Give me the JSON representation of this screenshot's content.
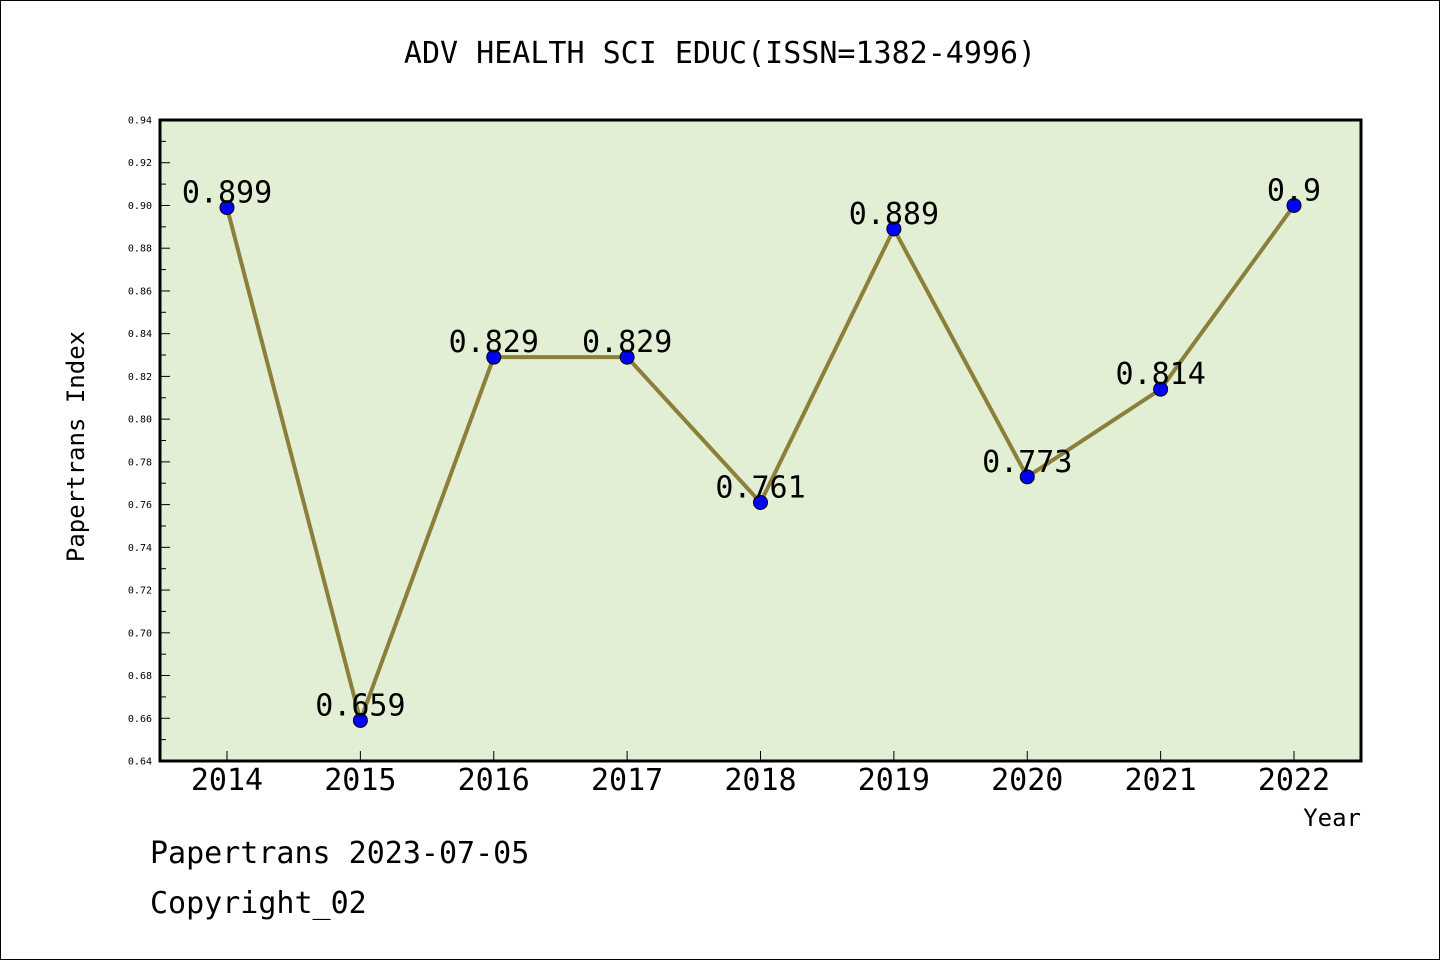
{
  "footer": {
    "line1": "Papertrans 2023-07-05",
    "line2": "Copyright_02"
  },
  "chart_data": {
    "type": "line",
    "title": "ADV HEALTH SCI EDUC(ISSN=1382-4996)",
    "xlabel": "Year",
    "ylabel": "Papertrans Index",
    "categories": [
      "2014",
      "2015",
      "2016",
      "2017",
      "2018",
      "2019",
      "2020",
      "2021",
      "2022"
    ],
    "series": [
      {
        "values": [
          0.899,
          0.659,
          0.829,
          0.829,
          0.761,
          0.889,
          0.773,
          0.814,
          0.9
        ]
      }
    ],
    "data_labels": [
      "0.899",
      "0.659",
      "0.829",
      "0.829",
      "0.761",
      "0.889",
      "0.773",
      "0.814",
      "0.9"
    ],
    "ylim": [
      0.64,
      0.94
    ],
    "y_ticks": [
      "0.64",
      "0.66",
      "0.68",
      "0.70",
      "0.72",
      "0.74",
      "0.76",
      "0.78",
      "0.80",
      "0.82",
      "0.84",
      "0.86",
      "0.88",
      "0.90",
      "0.92",
      "0.94"
    ],
    "grid": false,
    "legend": "none",
    "colors": {
      "plot_bg": "#e2efd5",
      "line": "#8b7f3a",
      "marker": "#0000ff"
    }
  }
}
